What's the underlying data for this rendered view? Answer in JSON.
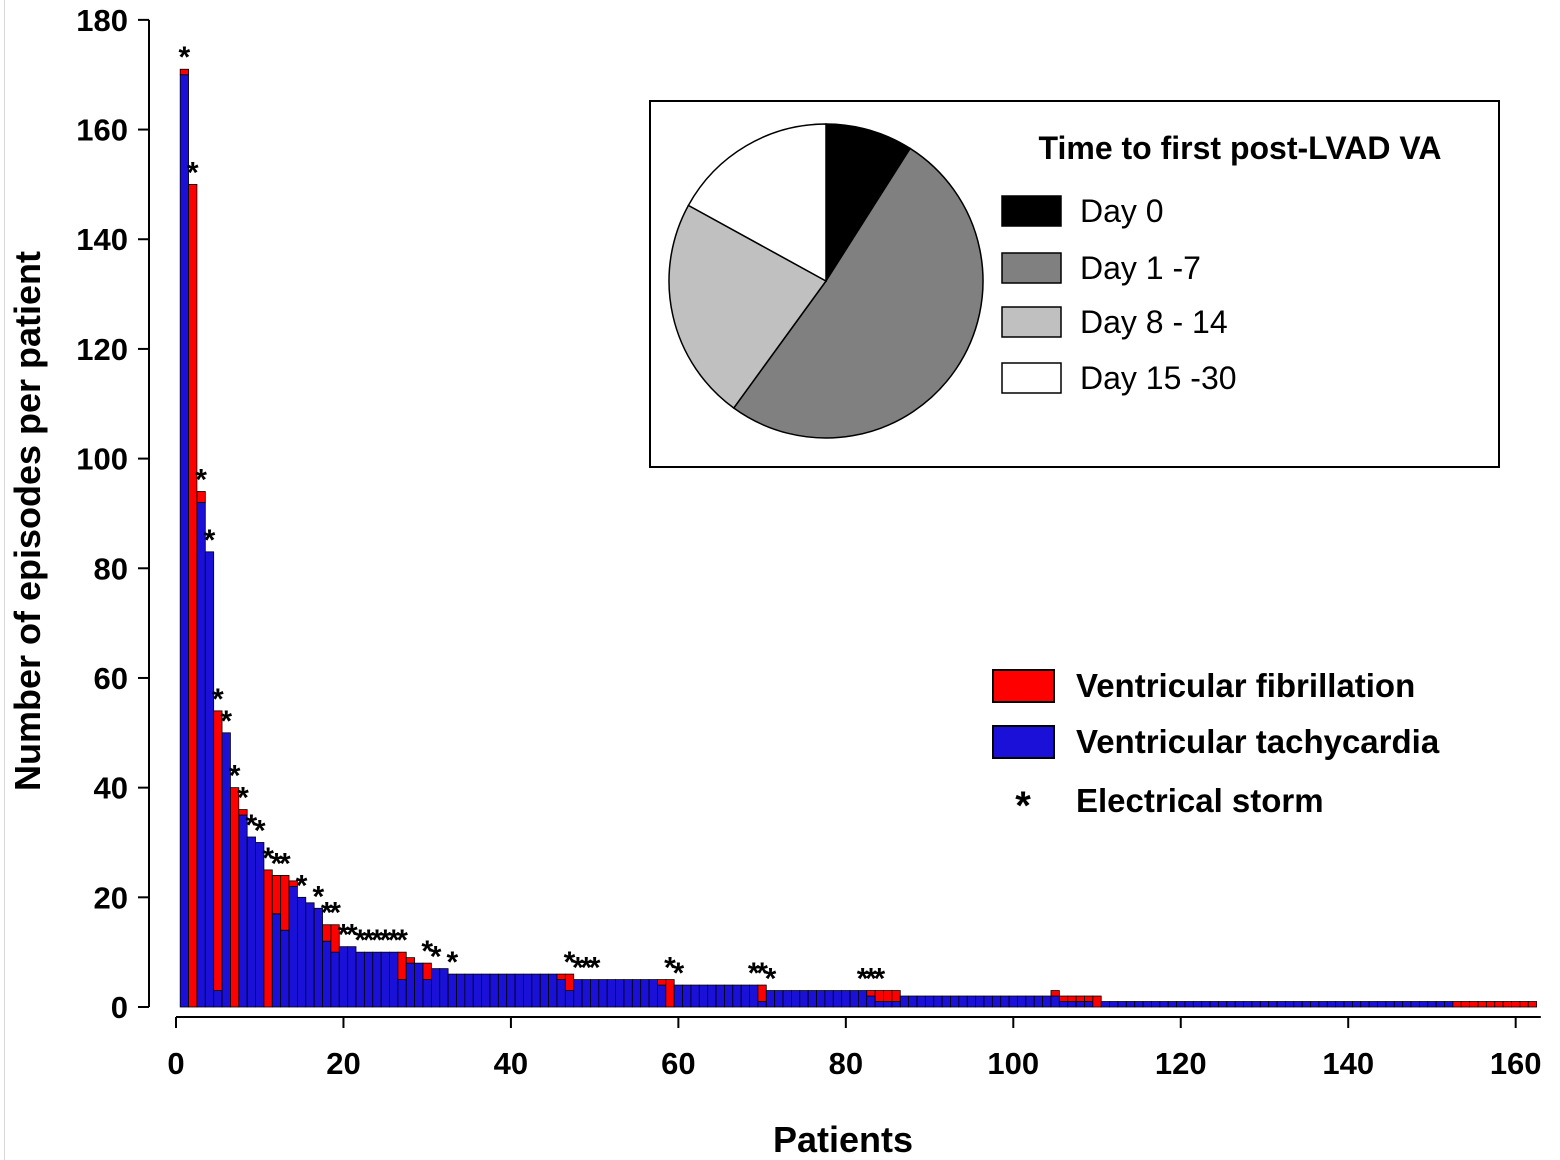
{
  "chart_data": [
    {
      "type": "bar",
      "stacked": true,
      "xlabel": "Patients",
      "ylabel": "Number of episodes per patient",
      "xlim": [
        0,
        163
      ],
      "ylim": [
        0,
        180
      ],
      "xticks": [
        0,
        20,
        40,
        60,
        80,
        100,
        120,
        140,
        160
      ],
      "yticks": [
        0,
        20,
        40,
        60,
        80,
        100,
        120,
        140,
        160,
        180
      ],
      "grid": false,
      "legend_position": "right",
      "colors": {
        "vt": "#1a10d8",
        "vf": "#ff0000",
        "edge": "#000000"
      },
      "legend": [
        {
          "label": "Ventricular fibrillation",
          "kind": "box",
          "color": "#ff0000"
        },
        {
          "label": "Ventricular tachycardia",
          "kind": "box",
          "color": "#1a10d8"
        },
        {
          "label": "Electrical storm",
          "kind": "marker",
          "symbol": "*"
        }
      ],
      "storm_marker": "*",
      "series": [
        {
          "name": "Ventricular tachycardia",
          "values": [
            170,
            0,
            92,
            83,
            3,
            50,
            0,
            35,
            31,
            30,
            0,
            17,
            14,
            22,
            20,
            19,
            18,
            12,
            10,
            11,
            11,
            10,
            10,
            10,
            10,
            10,
            5,
            8,
            8,
            5,
            7,
            7,
            6,
            6,
            6,
            6,
            6,
            6,
            6,
            6,
            6,
            6,
            6,
            6,
            6,
            5,
            3,
            5,
            5,
            5,
            5,
            5,
            5,
            5,
            5,
            5,
            5,
            4,
            0,
            4,
            4,
            4,
            4,
            4,
            4,
            4,
            4,
            4,
            4,
            1,
            3,
            3,
            3,
            3,
            3,
            3,
            3,
            3,
            3,
            3,
            3,
            3,
            2,
            1,
            1,
            1,
            2,
            2,
            2,
            2,
            2,
            2,
            2,
            2,
            2,
            2,
            2,
            2,
            2,
            2,
            2,
            2,
            2,
            2,
            2,
            1,
            1,
            1,
            1,
            0,
            1,
            1,
            1,
            1,
            1,
            1,
            1,
            1,
            1,
            1,
            1,
            1,
            1,
            1,
            1,
            1,
            1,
            1,
            1,
            1,
            1,
            1,
            1,
            1,
            1,
            1,
            1,
            1,
            1,
            1,
            1,
            1,
            1,
            1,
            1,
            1,
            1,
            1,
            1,
            1,
            1,
            1,
            0,
            0,
            0,
            0,
            0,
            0,
            0,
            0,
            0,
            0
          ]
        },
        {
          "name": "Ventricular fibrillation",
          "values": [
            1,
            150,
            2,
            0,
            51,
            0,
            40,
            1,
            0,
            0,
            25,
            7,
            10,
            1,
            0,
            0,
            0,
            3,
            5,
            0,
            0,
            0,
            0,
            0,
            0,
            0,
            5,
            1,
            0,
            3,
            0,
            0,
            0,
            0,
            0,
            0,
            0,
            0,
            0,
            0,
            0,
            0,
            0,
            0,
            0,
            1,
            3,
            0,
            0,
            0,
            0,
            0,
            0,
            0,
            0,
            0,
            0,
            1,
            5,
            0,
            0,
            0,
            0,
            0,
            0,
            0,
            0,
            0,
            0,
            3,
            0,
            0,
            0,
            0,
            0,
            0,
            0,
            0,
            0,
            0,
            0,
            0,
            1,
            2,
            2,
            2,
            0,
            0,
            0,
            0,
            0,
            0,
            0,
            0,
            0,
            0,
            0,
            0,
            0,
            0,
            0,
            0,
            0,
            0,
            1,
            1,
            1,
            1,
            1,
            2,
            0,
            0,
            0,
            0,
            0,
            0,
            0,
            0,
            0,
            0,
            0,
            0,
            0,
            0,
            0,
            0,
            0,
            0,
            0,
            0,
            0,
            0,
            0,
            0,
            0,
            0,
            0,
            0,
            0,
            0,
            0,
            0,
            0,
            0,
            0,
            0,
            0,
            0,
            0,
            0,
            0,
            0,
            1,
            1,
            1,
            1,
            1,
            1,
            1,
            1,
            1,
            1
          ]
        }
      ],
      "electrical_storm_patients": [
        1,
        2,
        3,
        4,
        5,
        6,
        7,
        8,
        9,
        10,
        11,
        12,
        13,
        15,
        17,
        18,
        19,
        20,
        21,
        22,
        23,
        24,
        25,
        26,
        27,
        30,
        31,
        33,
        47,
        48,
        49,
        50,
        59,
        60,
        69,
        70,
        71,
        82,
        83,
        84
      ]
    },
    {
      "type": "pie",
      "title": "Time to first post-LVAD VA",
      "slices": [
        {
          "label": "Day 0",
          "value": 9,
          "color": "#000000"
        },
        {
          "label": "Day 1 -7",
          "value": 51,
          "color": "#808080"
        },
        {
          "label": "Day 8 - 14",
          "value": 23,
          "color": "#c0c0c0"
        },
        {
          "label": "Day 15 -30",
          "value": 17,
          "color": "#ffffff"
        }
      ]
    }
  ]
}
